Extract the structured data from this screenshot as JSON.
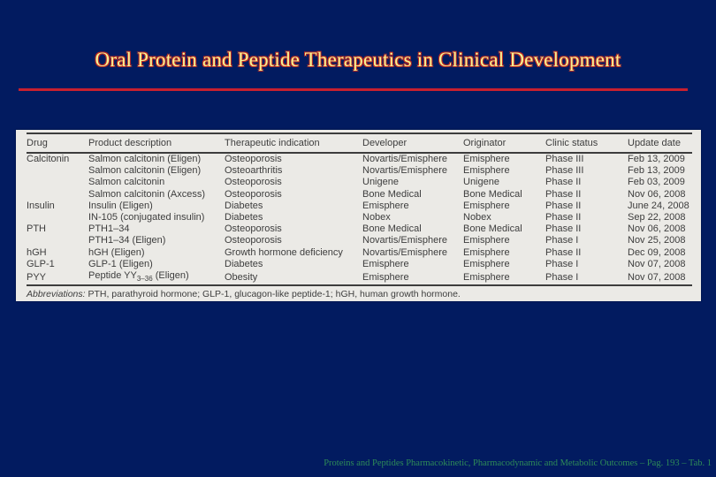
{
  "slide": {
    "title": "Oral Protein and Peptide Therapeutics in Clinical Development",
    "caption": "Proteins and Peptides Pharmacokinetic, Pharmacodynamic and Metabolic Outcomes – Pag. 193 – Tab. 1"
  },
  "colors": {
    "background": "#021b60",
    "title_fill": "#f3f394",
    "title_outline": "#bf2a24",
    "divider_red": "#c8202f",
    "caption_green": "#2e8b57",
    "table_background": "#ebeae6",
    "table_ink": "#3d3d3d"
  },
  "table": {
    "columns": [
      "Drug",
      "Product description",
      "Therapeutic indication",
      "Developer",
      "Originator",
      "Clinic status",
      "Update date"
    ],
    "rows": [
      [
        "Calcitonin",
        "Salmon calcitonin (Eligen)",
        "Osteoporosis",
        "Novartis/Emisphere",
        "Emisphere",
        "Phase III",
        "Feb 13, 2009"
      ],
      [
        "",
        "Salmon calcitonin (Eligen)",
        "Osteoarthritis",
        "Novartis/Emisphere",
        "Emisphere",
        "Phase III",
        "Feb 13, 2009"
      ],
      [
        "",
        "Salmon calcitonin",
        "Osteoporosis",
        "Unigene",
        "Unigene",
        "Phase II",
        "Feb 03, 2009"
      ],
      [
        "",
        "Salmon calcitonin (Axcess)",
        "Osteoporosis",
        "Bone Medical",
        "Bone Medical",
        "Phase II",
        "Nov 06, 2008"
      ],
      [
        "Insulin",
        "Insulin (Eligen)",
        "Diabetes",
        "Emisphere",
        "Emisphere",
        "Phase II",
        "June 24, 2008"
      ],
      [
        "",
        "IN-105 (conjugated insulin)",
        "Diabetes",
        "Nobex",
        "Nobex",
        "Phase II",
        "Sep 22, 2008"
      ],
      [
        "PTH",
        "PTH1–34",
        "Osteoporosis",
        "Bone Medical",
        "Bone Medical",
        "Phase II",
        "Nov 06, 2008"
      ],
      [
        "",
        "PTH1–34 (Eligen)",
        "Osteoporosis",
        "Novartis/Emisphere",
        "Emisphere",
        "Phase I",
        "Nov 25, 2008"
      ],
      [
        "hGH",
        "hGH (Eligen)",
        "Growth hormone deficiency",
        "Novartis/Emisphere",
        "Emisphere",
        "Phase II",
        "Dec 09, 2008"
      ],
      [
        "GLP-1",
        "GLP-1 (Eligen)",
        "Diabetes",
        "Emisphere",
        "Emisphere",
        "Phase I",
        "Nov 07, 2008"
      ],
      [
        "PYY",
        "Peptide YY_{3–36} (Eligen)",
        "Obesity",
        "Emisphere",
        "Emisphere",
        "Phase I",
        "Nov 07, 2008"
      ]
    ],
    "footnote_label": "Abbreviations:",
    "footnote_text": " PTH, parathyroid hormone; GLP-1, glucagon-like peptide-1; hGH, human growth hormone."
  }
}
